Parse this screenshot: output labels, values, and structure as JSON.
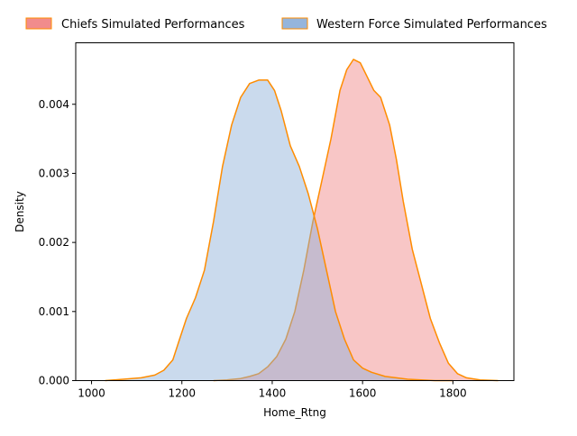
{
  "chart_data": {
    "type": "area",
    "title": "",
    "xlabel": "Home_Rtng",
    "ylabel": "Density",
    "xlim": [
      965,
      1935
    ],
    "ylim": [
      0,
      0.00489
    ],
    "x_ticks": [
      1000,
      1200,
      1400,
      1600,
      1800
    ],
    "y_ticks": [
      0.0,
      0.001,
      0.002,
      0.003,
      0.004
    ],
    "y_tick_labels": [
      "0.000",
      "0.001",
      "0.002",
      "0.003",
      "0.004"
    ],
    "grid": false,
    "legend_position": "top",
    "series": [
      {
        "name": "Chiefs Simulated Performances",
        "fill": "#f08080",
        "edge": "#ff8c00",
        "points": [
          [
            1270,
            0.0
          ],
          [
            1300,
            1e-05
          ],
          [
            1330,
            3e-05
          ],
          [
            1350,
            6e-05
          ],
          [
            1370,
            0.0001
          ],
          [
            1390,
            0.0002
          ],
          [
            1410,
            0.00035
          ],
          [
            1430,
            0.0006
          ],
          [
            1450,
            0.001
          ],
          [
            1470,
            0.0016
          ],
          [
            1490,
            0.0023
          ],
          [
            1510,
            0.0029
          ],
          [
            1530,
            0.0035
          ],
          [
            1550,
            0.0042
          ],
          [
            1565,
            0.0045
          ],
          [
            1580,
            0.00465
          ],
          [
            1595,
            0.0046
          ],
          [
            1610,
            0.0044
          ],
          [
            1625,
            0.0042
          ],
          [
            1640,
            0.0041
          ],
          [
            1660,
            0.0037
          ],
          [
            1675,
            0.0032
          ],
          [
            1690,
            0.0026
          ],
          [
            1710,
            0.0019
          ],
          [
            1730,
            0.0014
          ],
          [
            1750,
            0.0009
          ],
          [
            1770,
            0.00055
          ],
          [
            1790,
            0.00025
          ],
          [
            1810,
            0.0001
          ],
          [
            1830,
            4e-05
          ],
          [
            1860,
            1e-05
          ],
          [
            1900,
            0.0
          ]
        ]
      },
      {
        "name": "Western Force Simulated Performances",
        "fill": "#8aadd8",
        "edge": "#ff8c00",
        "points": [
          [
            1030,
            0.0
          ],
          [
            1070,
            2e-05
          ],
          [
            1110,
            4e-05
          ],
          [
            1140,
            8e-05
          ],
          [
            1160,
            0.00015
          ],
          [
            1180,
            0.0003
          ],
          [
            1195,
            0.0006
          ],
          [
            1210,
            0.0009
          ],
          [
            1230,
            0.0012
          ],
          [
            1250,
            0.0016
          ],
          [
            1270,
            0.0023
          ],
          [
            1290,
            0.0031
          ],
          [
            1310,
            0.0037
          ],
          [
            1330,
            0.0041
          ],
          [
            1350,
            0.0043
          ],
          [
            1370,
            0.00435
          ],
          [
            1390,
            0.00435
          ],
          [
            1405,
            0.0042
          ],
          [
            1420,
            0.0039
          ],
          [
            1440,
            0.0034
          ],
          [
            1460,
            0.0031
          ],
          [
            1480,
            0.0027
          ],
          [
            1500,
            0.0022
          ],
          [
            1520,
            0.0016
          ],
          [
            1540,
            0.001
          ],
          [
            1560,
            0.0006
          ],
          [
            1580,
            0.0003
          ],
          [
            1600,
            0.00018
          ],
          [
            1620,
            0.00012
          ],
          [
            1650,
            6e-05
          ],
          [
            1700,
            2e-05
          ],
          [
            1760,
            0.0
          ],
          [
            1800,
            0.0
          ]
        ]
      }
    ]
  }
}
